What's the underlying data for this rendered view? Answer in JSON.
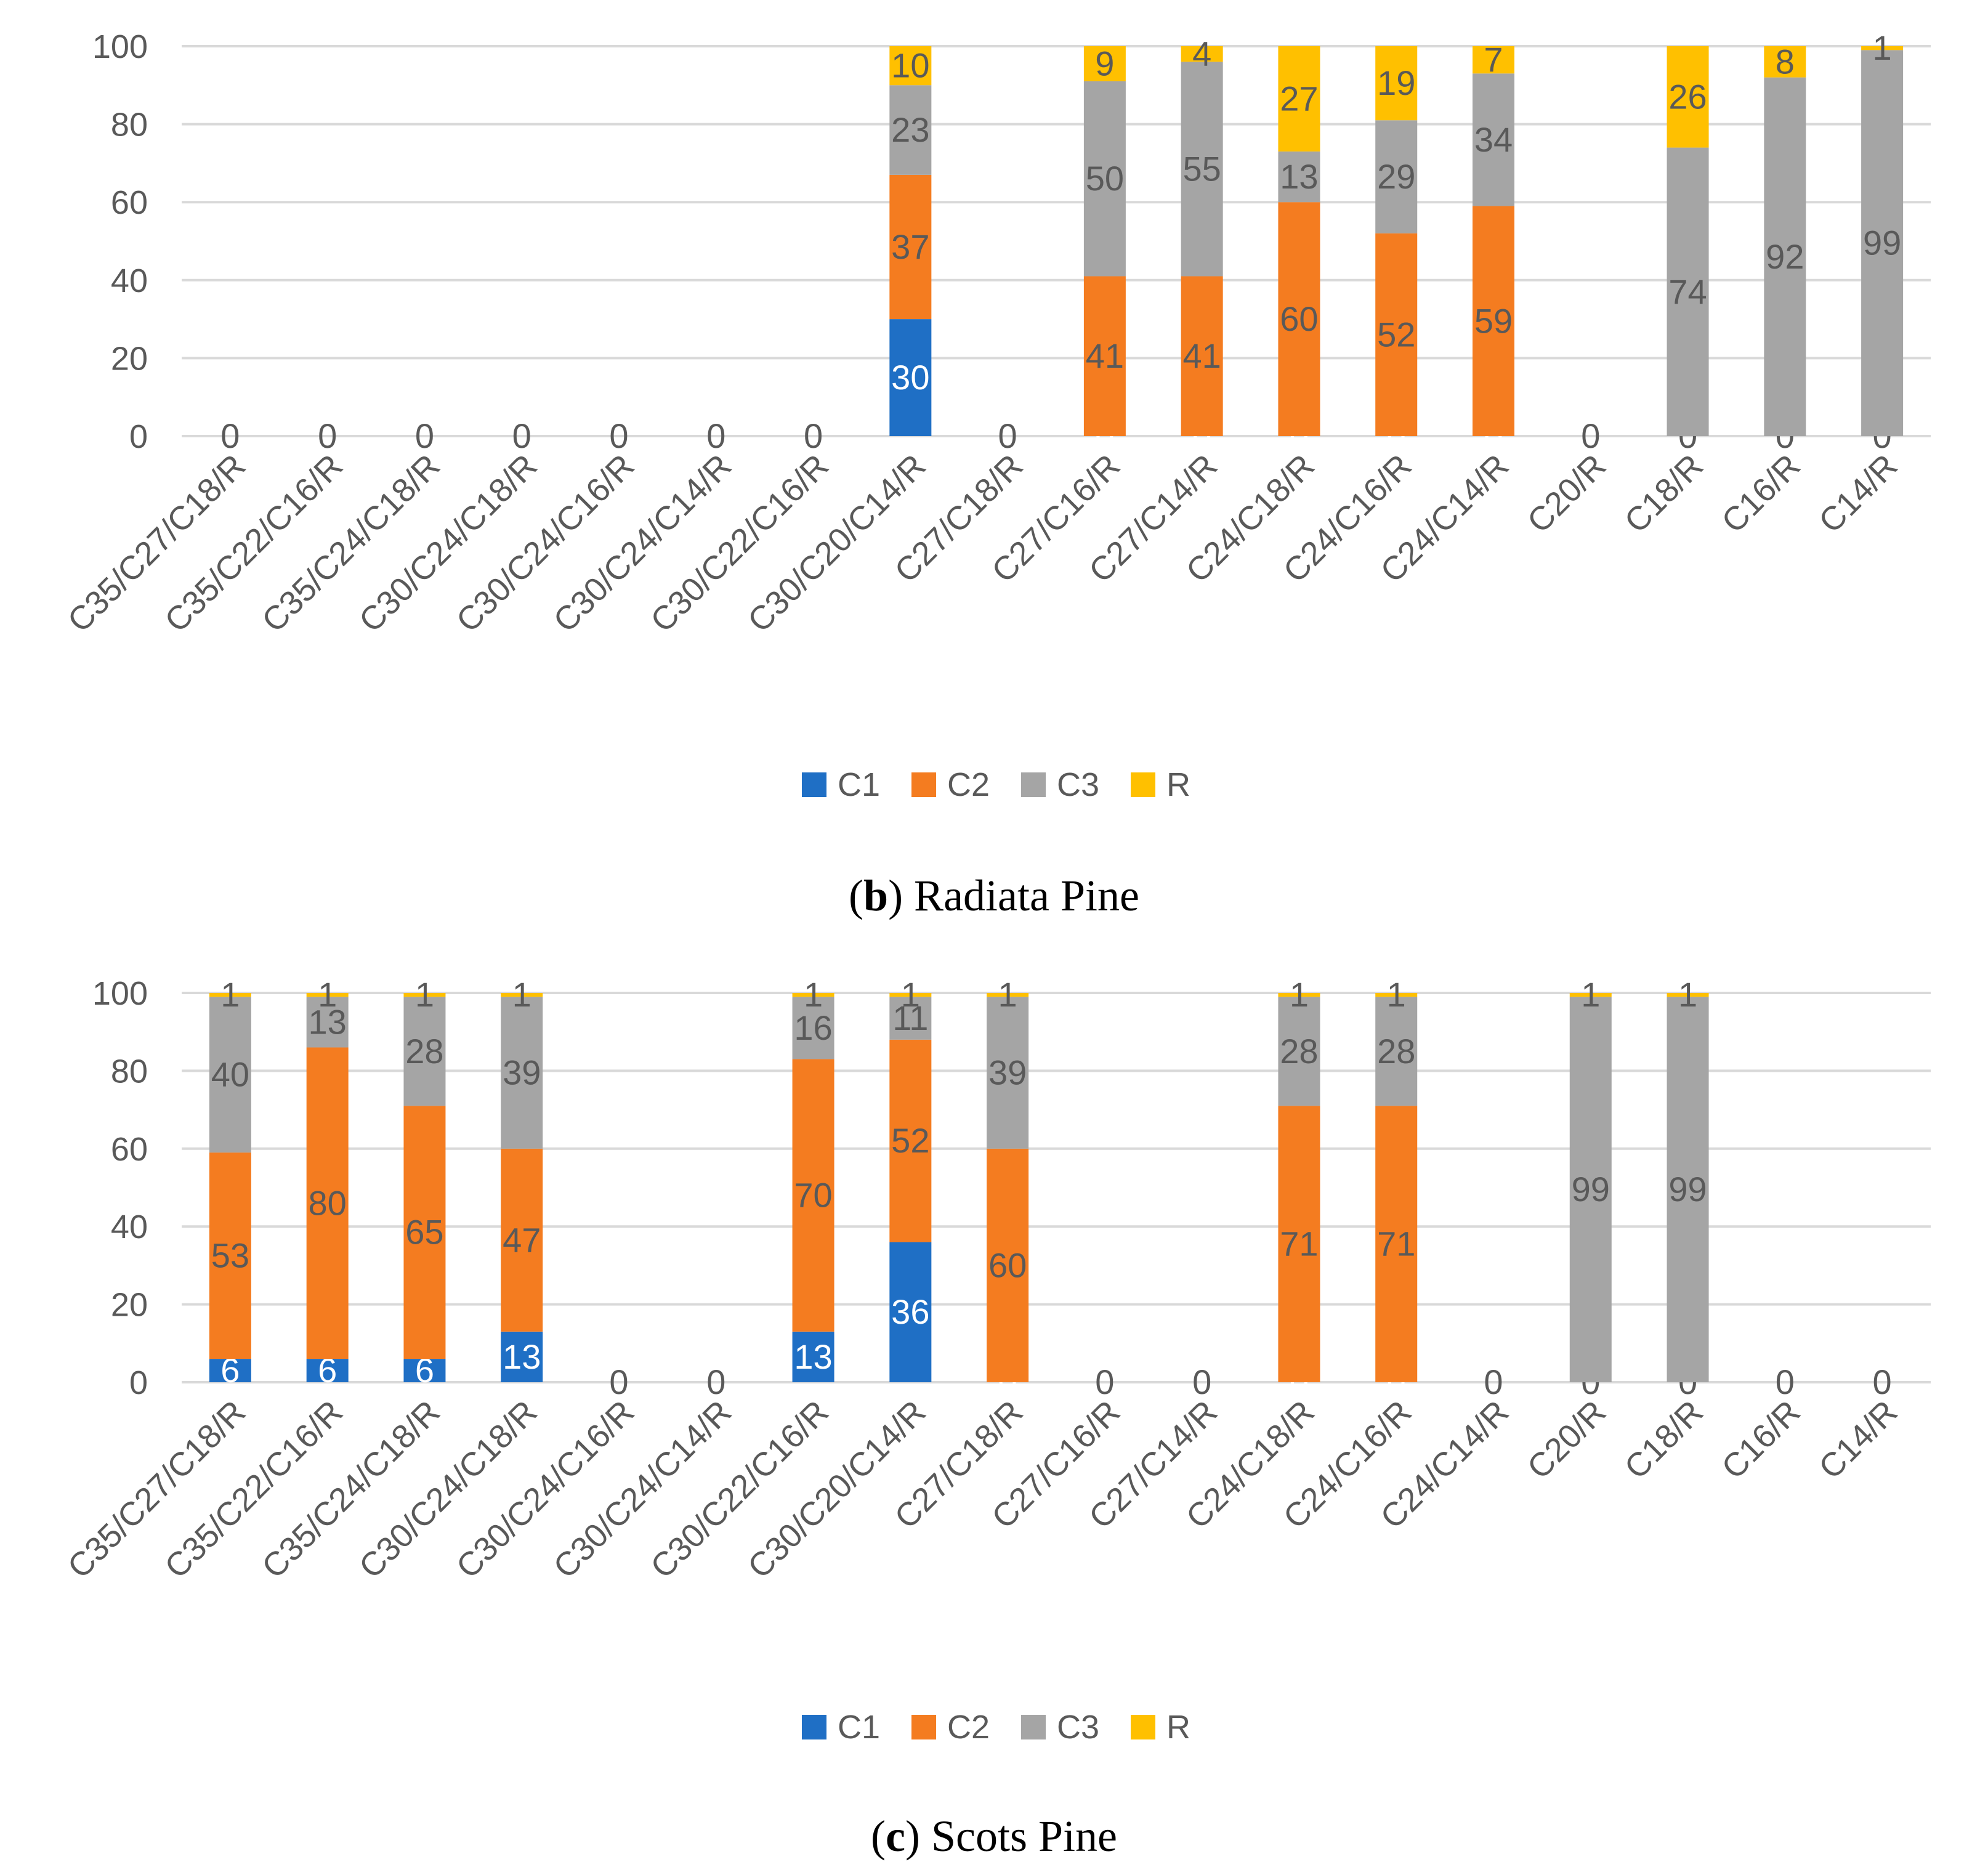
{
  "colors": {
    "C1": "#1f6fc5",
    "C2": "#f47c20",
    "C3": "#a5a5a5",
    "R": "#ffc000",
    "grid": "#d9d9d9",
    "label_dark": "#595959",
    "label_light": "#ffffff"
  },
  "chart_data": [
    {
      "type": "bar",
      "stacked": true,
      "caption_letter": "b",
      "caption_text": " Radiata Pine",
      "categories": [
        "C35/C27/C18/R",
        "C35/C22/C16/R",
        "C35/C24/C18/R",
        "C30/C24/C18/R",
        "C30/C24/C16/R",
        "C30/C24/C14/R",
        "C30/C22/C16/R",
        "C30/C20/C14/R",
        "C27/C18/R",
        "C27/C16/R",
        "C27/C14/R",
        "C24/C18/R",
        "C24/C16/R",
        "C24/C14/R",
        "C20/R",
        "C18/R",
        "C16/R",
        "C14/R"
      ],
      "series": [
        {
          "name": "C1",
          "values": [
            0,
            0,
            0,
            0,
            0,
            0,
            0,
            30,
            0,
            0,
            0,
            0,
            0,
            0,
            0,
            0,
            0,
            0
          ]
        },
        {
          "name": "C2",
          "values": [
            0,
            0,
            0,
            0,
            0,
            0,
            0,
            37,
            0,
            41,
            41,
            60,
            52,
            59,
            0,
            0,
            0,
            0
          ]
        },
        {
          "name": "C3",
          "values": [
            0,
            0,
            0,
            0,
            0,
            0,
            0,
            23,
            0,
            50,
            55,
            13,
            29,
            34,
            0,
            74,
            92,
            99
          ]
        },
        {
          "name": "R",
          "values": [
            0,
            0,
            0,
            0,
            0,
            0,
            0,
            10,
            0,
            9,
            4,
            27,
            19,
            7,
            0,
            26,
            8,
            1
          ]
        }
      ],
      "yticks": [
        0,
        20,
        40,
        60,
        80,
        100
      ],
      "ylim": [
        0,
        100
      ],
      "grid": true,
      "legend_position": "bottom"
    },
    {
      "type": "bar",
      "stacked": true,
      "caption_letter": "c",
      "caption_text": " Scots Pine",
      "categories": [
        "C35/C27/C18/R",
        "C35/C22/C16/R",
        "C35/C24/C18/R",
        "C30/C24/C18/R",
        "C30/C24/C16/R",
        "C30/C24/C14/R",
        "C30/C22/C16/R",
        "C30/C20/C14/R",
        "C27/C18/R",
        "C27/C16/R",
        "C27/C14/R",
        "C24/C18/R",
        "C24/C16/R",
        "C24/C14/R",
        "C20/R",
        "C18/R",
        "C16/R",
        "C14/R"
      ],
      "series": [
        {
          "name": "C1",
          "values": [
            6,
            6,
            6,
            13,
            0,
            0,
            13,
            36,
            0,
            0,
            0,
            0,
            0,
            0,
            0,
            0,
            0,
            0
          ]
        },
        {
          "name": "C2",
          "values": [
            53,
            80,
            65,
            47,
            0,
            0,
            70,
            52,
            60,
            0,
            0,
            71,
            71,
            0,
            0,
            0,
            0,
            0
          ]
        },
        {
          "name": "C3",
          "values": [
            40,
            13,
            28,
            39,
            0,
            0,
            16,
            11,
            39,
            0,
            0,
            28,
            28,
            0,
            99,
            99,
            0,
            0
          ]
        },
        {
          "name": "R",
          "values": [
            1,
            1,
            1,
            1,
            0,
            0,
            1,
            1,
            1,
            0,
            0,
            1,
            1,
            0,
            1,
            1,
            0,
            0
          ]
        }
      ],
      "yticks": [
        0,
        20,
        40,
        60,
        80,
        100
      ],
      "ylim": [
        0,
        100
      ],
      "grid": true,
      "legend_position": "bottom"
    }
  ]
}
